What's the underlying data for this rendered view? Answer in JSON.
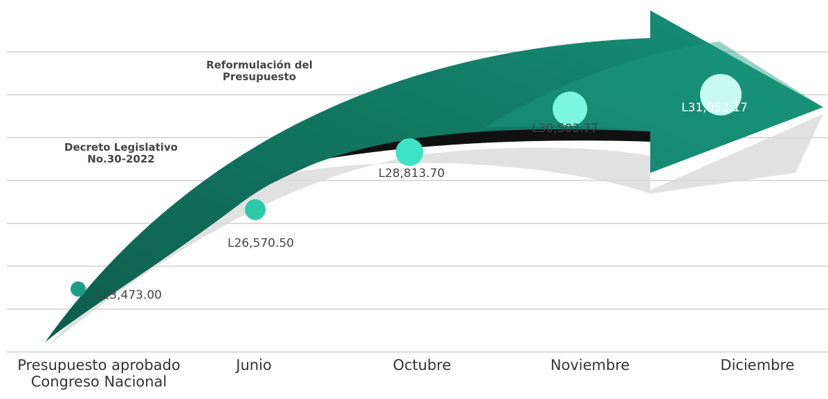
{
  "chart_data": {
    "type": "arrow-timeline",
    "categories": [
      "Presupuesto aprobado\nCongreso Nacional",
      "Junio",
      "Octubre",
      "Noviembre",
      "Diciembre"
    ],
    "values": [
      23473.0,
      26570.5,
      28813.7,
      30503.77,
      31052.17
    ],
    "value_labels": [
      "L23,473.00",
      "L26,570.50",
      "L28,813.70",
      "L30,503.77",
      "L31,052.17"
    ],
    "annotations": [
      "Reformulación del\nPresupuesto",
      "Decreto Legislativo\nNo.30-2022"
    ],
    "colors": [
      "#1a9e84",
      "#2cc9a6",
      "#3de3c4",
      "#7df6e0",
      "#c9faf2"
    ]
  }
}
